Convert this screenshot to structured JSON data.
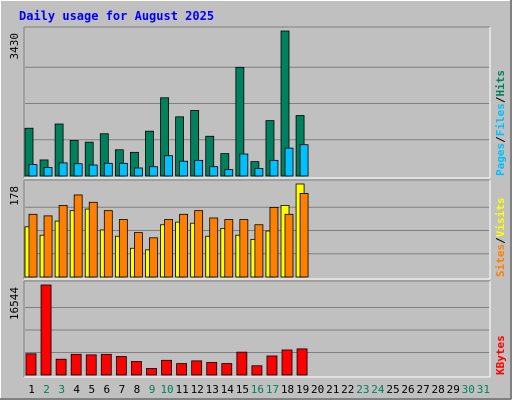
{
  "title": "Daily usage for August 2025",
  "colors": {
    "background": "#c0c0c0",
    "plot_bg": "#c0c0c0",
    "title": "#0000ff",
    "hits": "#00805c",
    "files": "#00c0ff",
    "pages": "#00c0ff",
    "visits": "#ffff00",
    "sites": "#ff8000",
    "kbytes": "#ff0000",
    "weekday_label": "#000000",
    "weekend_label": "#00805c"
  },
  "chart_data": [
    {
      "type": "bar",
      "name": "hits-files-pages",
      "y_max_label": "3430",
      "ylim": [
        0,
        3430
      ],
      "right_labels": [
        "Pages",
        "Files",
        "Hits"
      ],
      "separator": "/",
      "categories": [
        "1",
        "2",
        "3",
        "4",
        "5",
        "6",
        "7",
        "8",
        "9",
        "10",
        "11",
        "12",
        "13",
        "14",
        "15",
        "16",
        "17",
        "18",
        "19"
      ],
      "series": [
        {
          "name": "Hits",
          "values": [
            1130,
            380,
            1230,
            840,
            800,
            1000,
            620,
            560,
            1060,
            1850,
            1400,
            1550,
            940,
            530,
            2570,
            340,
            1310,
            3430,
            1430
          ]
        },
        {
          "name": "Files",
          "values": [
            270,
            200,
            310,
            290,
            260,
            300,
            300,
            190,
            220,
            480,
            350,
            370,
            220,
            150,
            520,
            180,
            370,
            660,
            740
          ]
        },
        {
          "name": "Pages",
          "values": [
            0,
            0,
            0,
            0,
            0,
            0,
            0,
            0,
            0,
            0,
            0,
            0,
            0,
            0,
            0,
            0,
            0,
            0,
            0
          ]
        }
      ],
      "grid": true
    },
    {
      "type": "bar",
      "name": "visits-sites",
      "y_max_label": "178",
      "ylim": [
        0,
        178
      ],
      "right_labels": [
        "Sites",
        "Visits"
      ],
      "separator": "/",
      "categories": [
        "1",
        "2",
        "3",
        "4",
        "5",
        "6",
        "7",
        "8",
        "9",
        "10",
        "11",
        "12",
        "13",
        "14",
        "15",
        "16",
        "17",
        "18",
        "19"
      ],
      "series": [
        {
          "name": "Visits",
          "values": [
            96,
            80,
            107,
            127,
            130,
            90,
            78,
            55,
            52,
            100,
            105,
            103,
            78,
            93,
            80,
            72,
            88,
            137,
            178
          ]
        },
        {
          "name": "Sites",
          "values": [
            120,
            117,
            137,
            157,
            143,
            127,
            110,
            85,
            75,
            110,
            120,
            127,
            113,
            110,
            110,
            100,
            133,
            120,
            160
          ]
        }
      ],
      "grid": true
    },
    {
      "type": "bar",
      "name": "kbytes",
      "y_max_label": "16544",
      "ylim": [
        0,
        16544
      ],
      "right_labels": [
        "KBytes"
      ],
      "categories": [
        "1",
        "2",
        "3",
        "4",
        "5",
        "6",
        "7",
        "8",
        "9",
        "10",
        "11",
        "12",
        "13",
        "14",
        "15",
        "16",
        "17",
        "18",
        "19"
      ],
      "series": [
        {
          "name": "KBytes",
          "values": [
            3900,
            16544,
            2900,
            3800,
            3700,
            3800,
            3400,
            2500,
            1200,
            2700,
            2100,
            2600,
            2300,
            2100,
            4200,
            1700,
            3500,
            4600,
            4800
          ]
        }
      ],
      "grid": true
    }
  ],
  "x_axis": {
    "labels": [
      "1",
      "2",
      "3",
      "4",
      "5",
      "6",
      "7",
      "8",
      "9",
      "10",
      "11",
      "12",
      "13",
      "14",
      "15",
      "16",
      "17",
      "18",
      "19",
      "20",
      "21",
      "22",
      "23",
      "24",
      "25",
      "26",
      "27",
      "28",
      "29",
      "30",
      "31"
    ],
    "weekend": [
      "2",
      "3",
      "9",
      "10",
      "16",
      "17",
      "23",
      "24",
      "30",
      "31"
    ]
  }
}
